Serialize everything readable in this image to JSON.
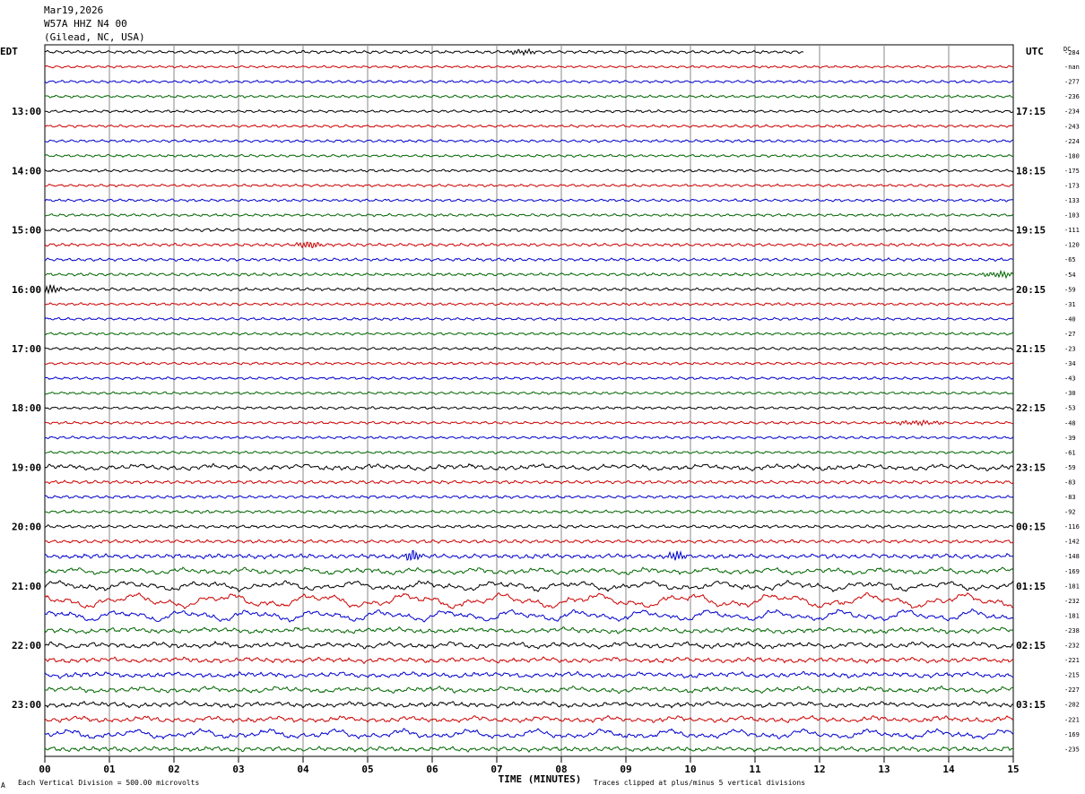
{
  "header": {
    "date": "Mar19,2026",
    "channel": "W57A HHZ N4 00",
    "location": "(Gilead, NC, USA)"
  },
  "left_tz": "EDT",
  "right_tz": "UTC",
  "dc_header": "DC",
  "footer": {
    "scale_note": "Each Vertical Division =  500.00 microvolts",
    "clip_note": "Traces clipped at plus/minus 5 vertical divisions",
    "corner_mark": "A"
  },
  "colors": {
    "cycle": [
      "#000000",
      "#cc0000",
      "#0000cc",
      "#006600"
    ]
  },
  "chart_data": {
    "type": "line",
    "title": "W57A HHZ N4 00",
    "xlabel": "TIME (MINUTES)",
    "x_ticks": [
      "00",
      "01",
      "02",
      "03",
      "04",
      "05",
      "06",
      "07",
      "08",
      "09",
      "10",
      "11",
      "12",
      "13",
      "14",
      "15"
    ],
    "xlim": [
      0,
      15
    ],
    "left_time_labels": [
      "13:00",
      "14:00",
      "15:00",
      "16:00",
      "17:00",
      "18:00",
      "19:00",
      "20:00",
      "21:00",
      "22:00",
      "23:00"
    ],
    "right_time_labels": [
      "17:15",
      "18:15",
      "19:15",
      "20:15",
      "21:15",
      "22:15",
      "23:15",
      "00:15",
      "01:15",
      "02:15",
      "03:15"
    ],
    "dc_offsets": [
      "-284",
      "-nan",
      "-277",
      "-236",
      "-234",
      "-243",
      "-224",
      "-180",
      "-175",
      "-173",
      "-133",
      "-103",
      "-111",
      "-120",
      "-65",
      "-54",
      "-59",
      "-31",
      "-40",
      "-27",
      "-23",
      "-34",
      "-43",
      "-30",
      "-53",
      "-48",
      "-39",
      "-61",
      "-59",
      "-83",
      "-83",
      "-92",
      "-116",
      "-142",
      "-148",
      "-169",
      "-181",
      "-232",
      "-181",
      "-238",
      "-232",
      "-221",
      "-215",
      "-227",
      "-202",
      "-221",
      "-169",
      "-235"
    ],
    "trace_count": 48,
    "first_trace_end_minute": 11.75,
    "trace_activity": [
      0.9,
      0.7,
      0.8,
      0.8,
      0.8,
      0.8,
      0.8,
      0.8,
      0.8,
      0.8,
      0.8,
      0.8,
      0.9,
      0.9,
      0.9,
      0.9,
      0.9,
      0.8,
      0.8,
      0.8,
      0.8,
      0.8,
      0.8,
      0.8,
      0.8,
      0.8,
      0.8,
      0.8,
      2.2,
      1.0,
      0.9,
      0.9,
      0.9,
      1.0,
      1.4,
      2.4,
      3.5,
      5.2,
      4.2,
      2.0,
      2.2,
      1.8,
      1.9,
      2.1,
      2.0,
      2.2,
      3.5,
      1.5
    ],
    "events": [
      {
        "trace": 0,
        "minute": 7.4,
        "width": 0.3,
        "amp": 2.5
      },
      {
        "trace": 13,
        "minute": 4.1,
        "width": 0.25,
        "amp": 4
      },
      {
        "trace": 15,
        "minute": 14.8,
        "width": 0.4,
        "amp": 3
      },
      {
        "trace": 16,
        "minute": 0.1,
        "width": 0.2,
        "amp": 5
      },
      {
        "trace": 25,
        "minute": 13.5,
        "width": 0.6,
        "amp": 2
      },
      {
        "trace": 34,
        "minute": 5.7,
        "width": 0.2,
        "amp": 6
      },
      {
        "trace": 34,
        "minute": 9.8,
        "width": 0.2,
        "amp": 5
      }
    ]
  }
}
